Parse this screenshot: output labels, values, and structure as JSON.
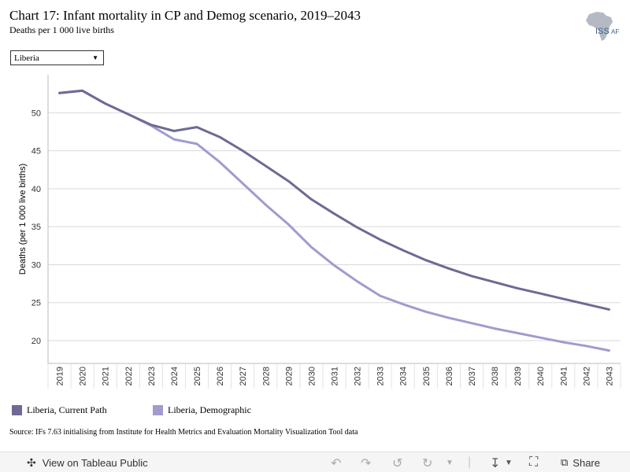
{
  "header": {
    "title": "Chart 17: Infant mortality in CP and Demog scenario, 2019–2043",
    "subtitle": "Deaths per 1 000 live births"
  },
  "logo": {
    "text": "ISS",
    "suffix": "AF"
  },
  "filter": {
    "selected": "Liberia"
  },
  "chart_data": {
    "type": "line",
    "title": "Chart 17: Infant mortality in CP and Demog scenario, 2019–2043",
    "ylabel": "Deaths (per 1 000 live births)",
    "xlabel": "",
    "ylim": [
      17,
      55
    ],
    "yticks": [
      20,
      25,
      30,
      35,
      40,
      45,
      50
    ],
    "grid": true,
    "legend_position": "bottom",
    "categories": [
      "2019",
      "2020",
      "2021",
      "2022",
      "2023",
      "2024",
      "2025",
      "2026",
      "2027",
      "2028",
      "2029",
      "2030",
      "2031",
      "2032",
      "2033",
      "2034",
      "2035",
      "2036",
      "2037",
      "2038",
      "2039",
      "2040",
      "2041",
      "2042",
      "2043"
    ],
    "series": [
      {
        "name": "Liberia, Current Path",
        "color": "#6e6a95",
        "values": [
          52.6,
          52.9,
          51.2,
          49.8,
          48.4,
          47.6,
          48.1,
          46.8,
          45.0,
          43.0,
          41.0,
          38.6,
          36.7,
          34.9,
          33.3,
          31.9,
          30.6,
          29.5,
          28.5,
          27.7,
          26.9,
          26.2,
          25.5,
          24.8,
          24.1
        ]
      },
      {
        "name": "Liberia, Demographic",
        "color": "#a09cce",
        "values": [
          52.6,
          52.9,
          51.2,
          49.8,
          48.3,
          46.5,
          45.9,
          43.5,
          40.7,
          37.9,
          35.3,
          32.3,
          29.9,
          27.8,
          25.9,
          24.8,
          23.8,
          23.0,
          22.3,
          21.6,
          21.0,
          20.4,
          19.8,
          19.3,
          18.7
        ]
      }
    ]
  },
  "source": "Source: IFs 7.63 initialising from Institute for Health Metrics and Evaluation Mortality Visualization Tool data",
  "footer": {
    "view_label": "View on Tableau Public",
    "share_label": "Share"
  }
}
